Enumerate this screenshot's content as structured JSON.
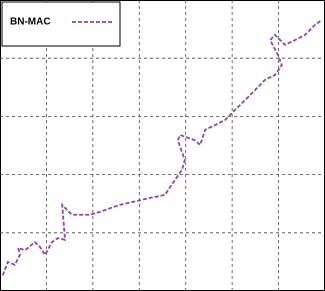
{
  "chart_data": {
    "type": "line",
    "x": [
      0.06,
      0.17,
      0.32,
      0.43,
      0.39,
      0.54,
      0.75,
      0.86,
      0.97,
      1.12,
      1.25,
      1.4,
      1.34,
      1.55,
      1.94,
      2.15,
      2.58,
      3.02,
      3.23,
      3.55,
      3.77,
      3.92,
      3.98,
      3.83,
      3.88,
      4.2,
      4.31,
      4.42,
      4.63,
      4.85,
      5.06,
      5.28,
      5.49,
      5.71,
      5.92,
      6.07,
      5.99,
      5.82,
      5.92,
      6.14,
      6.35,
      6.57,
      6.78,
      6.94
    ],
    "series": [
      {
        "name": "BN-MAC",
        "color": "#8e44ad",
        "values": [
          0.27,
          0.5,
          0.45,
          0.62,
          0.74,
          0.7,
          0.84,
          0.76,
          0.62,
          0.84,
          0.91,
          0.88,
          1.48,
          1.31,
          1.31,
          1.36,
          1.48,
          1.56,
          1.6,
          1.65,
          1.91,
          2.08,
          2.25,
          2.59,
          2.68,
          2.59,
          2.51,
          2.77,
          2.85,
          2.94,
          3.11,
          3.28,
          3.45,
          3.63,
          3.71,
          3.88,
          4.05,
          4.31,
          4.4,
          4.23,
          4.31,
          4.4,
          4.57,
          4.66
        ]
      }
    ],
    "xlim": [
      0,
      7
    ],
    "xticks": [
      1,
      2,
      3,
      4,
      5,
      6
    ],
    "ylim": [
      0,
      5
    ],
    "yticks": [
      1,
      2,
      3,
      4
    ],
    "grid": true,
    "legend": "upper-left"
  }
}
